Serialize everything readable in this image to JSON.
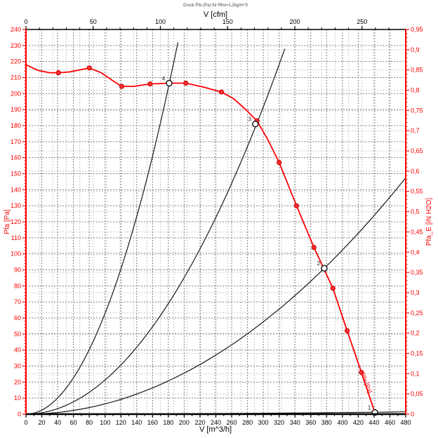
{
  "colors": {
    "accent_red": "#ff0000",
    "marker_fill": "#ff3333",
    "marker_stroke": "#cc0000",
    "curve_black": "#1a1a1a",
    "grid_dark": "#7d7d7d",
    "grid_light": "#c9c9c9",
    "axis_black": "#000000",
    "title_gray": "#444444"
  },
  "chart_data": {
    "type": "line",
    "title": "Druck Pfa (Pa) für Rho=1,2kg/m^3",
    "axes": {
      "bottom": {
        "label": "V [m^3/h]",
        "min": 0,
        "max": 480,
        "major_step": 20,
        "minor_step": 10,
        "tick_labels": [
          "0",
          "20",
          "40",
          "60",
          "80",
          "100",
          "120",
          "140",
          "160",
          "180",
          "200",
          "220",
          "240",
          "260",
          "280",
          "300",
          "320",
          "340",
          "360",
          "380",
          "400",
          "420",
          "440",
          "460",
          "480"
        ],
        "color": "#000000"
      },
      "top": {
        "label": "V [cfm]",
        "min": 0,
        "max": 250,
        "major_step": 50,
        "minor_step": 10,
        "tick_labels": [
          "0",
          "50",
          "100",
          "150",
          "200",
          "250"
        ],
        "unit_scale_to_m3h": 1.699,
        "color": "#000000"
      },
      "left": {
        "label": "Pfa [Pa]",
        "min": 0,
        "max": 240,
        "major_step": 10,
        "minor_step": 2,
        "tick_labels": [
          "0",
          "10",
          "20",
          "30",
          "40",
          "50",
          "60",
          "70",
          "80",
          "90",
          "100",
          "110",
          "120",
          "130",
          "140",
          "150",
          "160",
          "170",
          "180",
          "190",
          "200",
          "210",
          "220",
          "230",
          "240"
        ],
        "color": "#ff0000"
      },
      "right": {
        "label": "Pfa_E [iN H2O]",
        "min": 0,
        "max": 0.95,
        "major_step": 0.05,
        "minor_step": 0.01,
        "tick_labels": [
          "0",
          "0,05",
          "0,1",
          "0,15",
          "0,2",
          "0,25",
          "0,3",
          "0,35",
          "0,4",
          "0,45",
          "0,5",
          "0,55",
          "0,6",
          "0,65",
          "0,7",
          "0,75",
          "0,8",
          "0,85",
          "0,9",
          "0,95"
        ],
        "color": "#ff0000"
      }
    },
    "grid": {
      "shown": true,
      "style": "dashed"
    },
    "series": [
      {
        "name": "Pfa [Pa]",
        "color": "#ff0000",
        "curve_points": [
          [
            0,
            218
          ],
          [
            15,
            214.5
          ],
          [
            30,
            213
          ],
          [
            41,
            213
          ],
          [
            55,
            213.5
          ],
          [
            70,
            215
          ],
          [
            80,
            216
          ],
          [
            95,
            213
          ],
          [
            110,
            208
          ],
          [
            121,
            204.5
          ],
          [
            135,
            204.5
          ],
          [
            157,
            206
          ],
          [
            180,
            206.5
          ],
          [
            202,
            206.5
          ],
          [
            225,
            204
          ],
          [
            247,
            201
          ],
          [
            262,
            197
          ],
          [
            278,
            190
          ],
          [
            292,
            183
          ],
          [
            306,
            171
          ],
          [
            320,
            157
          ],
          [
            342,
            130
          ],
          [
            364,
            104
          ],
          [
            388,
            78.5
          ],
          [
            406,
            52
          ],
          [
            424,
            26
          ],
          [
            441,
            1
          ]
        ],
        "marker_points": [
          [
            41,
            213
          ],
          [
            80,
            216
          ],
          [
            121,
            204.5
          ],
          [
            157,
            206
          ],
          [
            202,
            206.5
          ],
          [
            247,
            201
          ],
          [
            292,
            183
          ],
          [
            320,
            157
          ],
          [
            342,
            130
          ],
          [
            364,
            104
          ],
          [
            388,
            78.5
          ],
          [
            406,
            52
          ],
          [
            424,
            26
          ]
        ]
      }
    ],
    "system_curves": [
      {
        "name": "system-curve-4",
        "k": 0.00629,
        "p_end": 232
      },
      {
        "name": "system-curve-3",
        "k": 0.00213,
        "p_end": 228
      },
      {
        "name": "system-curve-2",
        "k": 0.00064,
        "p_end": 240
      },
      {
        "name": "system-curve-1",
        "k": 6.2e-06,
        "p_end": 240
      }
    ],
    "operating_points": [
      {
        "label": "4",
        "v": 181,
        "p": 206.5
      },
      {
        "label": "3",
        "v": 290,
        "p": 181
      },
      {
        "label": "2",
        "v": 377,
        "p": 91
      },
      {
        "label": "1",
        "v": 441,
        "p": 1
      }
    ],
    "curve_label": {
      "text": "Pfa [Pa]",
      "v": 428,
      "p": 19,
      "angle": 68
    }
  }
}
